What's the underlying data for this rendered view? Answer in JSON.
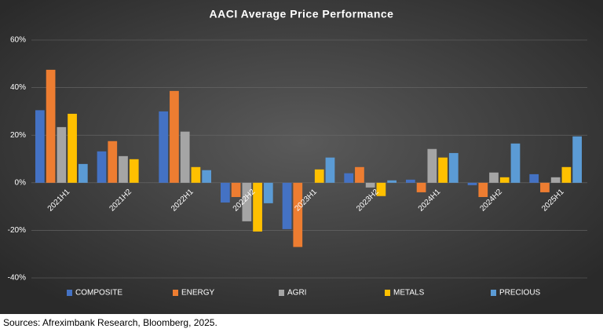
{
  "chart_data": {
    "type": "bar",
    "title": "AACI Average Price Performance",
    "categories": [
      "2021H1",
      "2021H2",
      "2022H1",
      "2022H2",
      "2023H1",
      "2023H2",
      "2024H1",
      "2024H2",
      "2025H1"
    ],
    "series": [
      {
        "name": "COMPOSITE",
        "color": "#4472c4",
        "values": [
          30.5,
          13.2,
          30,
          -8.3,
          -19.5,
          4,
          1.3,
          -1,
          3.6
        ]
      },
      {
        "name": "ENERGY",
        "color": "#ed7d31",
        "values": [
          47.5,
          17.5,
          38.6,
          -6,
          -27,
          6.6,
          -4,
          -6,
          -4
        ]
      },
      {
        "name": "AGRI",
        "color": "#a5a5a5",
        "values": [
          23.4,
          11.2,
          21.5,
          -16.2,
          0,
          -2,
          14.2,
          4.3,
          2.3
        ]
      },
      {
        "name": "METALS",
        "color": "#ffc000",
        "values": [
          29,
          9.9,
          6.6,
          -20.5,
          5.6,
          -5.6,
          10.6,
          2.3,
          6.6
        ]
      },
      {
        "name": "PRECIOUS",
        "color": "#5b9bd5",
        "values": [
          7.9,
          0,
          5.3,
          -8.6,
          10.6,
          1,
          12.5,
          16.5,
          19.5
        ]
      }
    ],
    "ylim": [
      -40,
      60
    ],
    "yticks": [
      {
        "value": -40,
        "label": "-40%"
      },
      {
        "value": -20,
        "label": "-20%"
      },
      {
        "value": 0,
        "label": "0%"
      },
      {
        "value": 20,
        "label": "20%"
      },
      {
        "value": 40,
        "label": "40%"
      },
      {
        "value": 60,
        "label": "60%"
      }
    ],
    "grid": true,
    "legend": "bottom",
    "source": "Sources: Afreximbank Research, Bloomberg, 2025."
  }
}
